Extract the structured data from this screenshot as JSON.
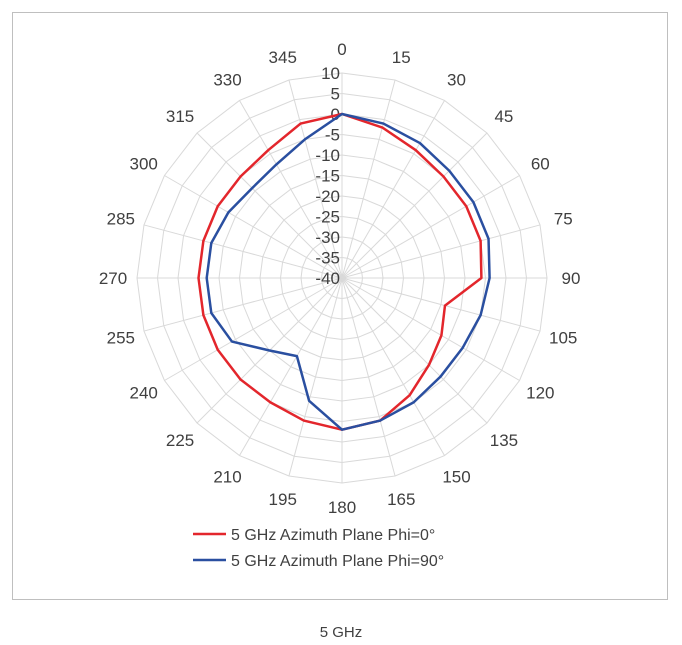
{
  "chart_data": {
    "type": "radar",
    "angles": [
      0,
      15,
      30,
      45,
      60,
      75,
      90,
      105,
      120,
      135,
      150,
      165,
      180,
      195,
      210,
      225,
      240,
      255,
      270,
      285,
      300,
      315,
      330,
      345
    ],
    "angle_labels": [
      "0",
      "15",
      "30",
      "45",
      "60",
      "75",
      "90",
      "105",
      "120",
      "135",
      "150",
      "165",
      "180",
      "195",
      "210",
      "225",
      "240",
      "255",
      "270",
      "285",
      "300",
      "315",
      "330",
      "345"
    ],
    "rlim": [
      -40,
      10
    ],
    "r_ticks": [
      10,
      5,
      0,
      -5,
      -10,
      -15,
      -20,
      -25,
      -30,
      -35,
      -40
    ],
    "r_tick_labels": [
      "10",
      "5",
      "0",
      "-5",
      "-10",
      "-15",
      "-20",
      "-25",
      "-30",
      "-35",
      "-40"
    ],
    "grid": true,
    "legend_position": "bottom",
    "series": [
      {
        "name": "5 GHz Azimuth Plane Phi=0°",
        "color": "#e3262c",
        "values": [
          0,
          -2,
          -4,
          -5,
          -5,
          -5,
          -6,
          -14,
          -12,
          -10,
          -7,
          -4,
          -3,
          -4,
          -5,
          -5,
          -5,
          -5,
          -5,
          -5,
          -5,
          -5,
          -4,
          -1
        ]
      },
      {
        "name": "5 GHz Azimuth Plane Phi=90°",
        "color": "#2a4fa0",
        "values": [
          0,
          -1,
          -2,
          -3,
          -3,
          -3,
          -4,
          -5,
          -6,
          -6,
          -5,
          -4,
          -3,
          -9,
          -18,
          -15,
          -9,
          -7,
          -7,
          -7,
          -8,
          -9,
          -8,
          -5
        ]
      }
    ]
  },
  "caption": "5 GHz"
}
